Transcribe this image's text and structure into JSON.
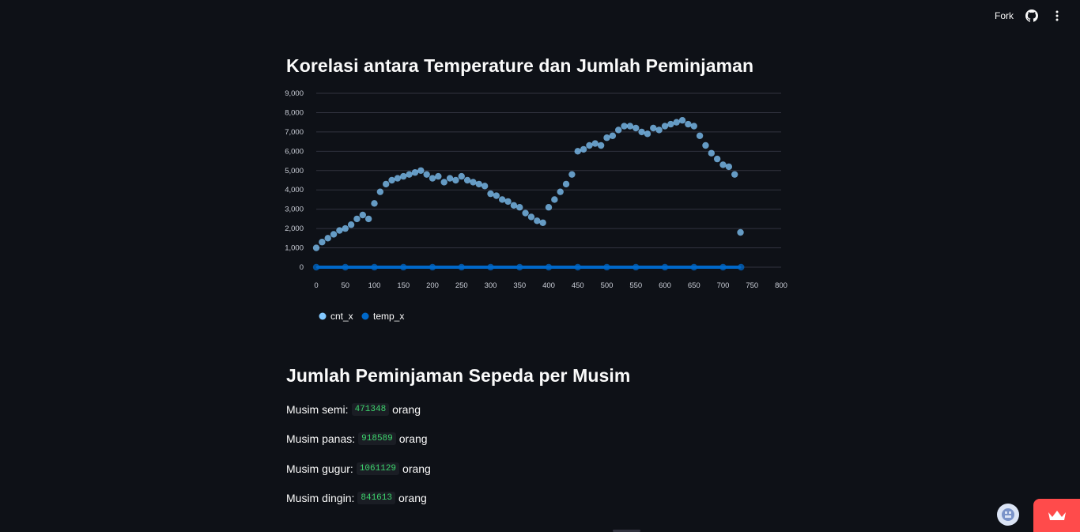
{
  "topbar": {
    "fork_label": "Fork",
    "icons": [
      "github-icon",
      "kebab-menu-icon"
    ]
  },
  "section1": {
    "title": "Korelasi antara Temperature dan Jumlah Peminjaman"
  },
  "section2": {
    "title": "Jumlah Peminjaman Sepeda per Musim",
    "rows": [
      {
        "label": "Musim semi:",
        "value": "471348",
        "unit": "orang"
      },
      {
        "label": "Musim panas:",
        "value": "918589",
        "unit": "orang"
      },
      {
        "label": "Musim gugur:",
        "value": "1061129",
        "unit": "orang"
      },
      {
        "label": "Musim dingin:",
        "value": "841613",
        "unit": "orang"
      }
    ]
  },
  "colors": {
    "background": "#0e1117",
    "cnt_color": "#83c9ff",
    "temp_color": "#0068c9",
    "code_text": "#3dd56d",
    "deploy_button": "#ff4b4b"
  },
  "chart_data": {
    "type": "scatter",
    "title": "",
    "xlabel": "",
    "ylabel": "",
    "xlim": [
      0,
      800
    ],
    "ylim": [
      0,
      9000
    ],
    "xticks": [
      "0",
      "50",
      "100",
      "150",
      "200",
      "250",
      "300",
      "350",
      "400",
      "450",
      "500",
      "550",
      "600",
      "650",
      "700",
      "750",
      "800"
    ],
    "yticks": [
      "0",
      "1,000",
      "2,000",
      "3,000",
      "4,000",
      "5,000",
      "6,000",
      "7,000",
      "8,000",
      "9,000"
    ],
    "grid": true,
    "legend_position": "bottom-left",
    "series": [
      {
        "name": "cnt_x",
        "color": "#83c9ff",
        "x": [
          0,
          10,
          20,
          30,
          40,
          50,
          60,
          70,
          80,
          90,
          100,
          110,
          120,
          130,
          140,
          150,
          160,
          170,
          180,
          190,
          200,
          210,
          220,
          230,
          240,
          250,
          260,
          270,
          280,
          290,
          300,
          310,
          320,
          330,
          340,
          350,
          360,
          370,
          380,
          390,
          400,
          410,
          420,
          430,
          440,
          450,
          460,
          470,
          480,
          490,
          500,
          510,
          520,
          530,
          540,
          550,
          560,
          570,
          580,
          590,
          600,
          610,
          620,
          630,
          640,
          650,
          660,
          670,
          680,
          690,
          700,
          710,
          720,
          730
        ],
        "y": [
          1000,
          1300,
          1500,
          1700,
          1900,
          2000,
          2200,
          2500,
          2700,
          2500,
          3300,
          3900,
          4300,
          4500,
          4600,
          4700,
          4800,
          4900,
          5000,
          4800,
          4600,
          4700,
          4400,
          4600,
          4500,
          4700,
          4500,
          4400,
          4300,
          4200,
          3800,
          3700,
          3500,
          3400,
          3200,
          3100,
          2800,
          2600,
          2400,
          2300,
          3100,
          3500,
          3900,
          4300,
          4800,
          6000,
          6100,
          6300,
          6400,
          6300,
          6700,
          6800,
          7100,
          7300,
          7300,
          7200,
          7000,
          6900,
          7200,
          7100,
          7300,
          7400,
          7500,
          7600,
          7400,
          7300,
          6800,
          6300,
          5900,
          5600,
          5300,
          5200,
          4800,
          1800
        ]
      },
      {
        "name": "temp_x",
        "color": "#0068c9",
        "x": [
          0,
          50,
          100,
          150,
          200,
          250,
          300,
          350,
          400,
          450,
          500,
          550,
          600,
          650,
          700,
          731
        ],
        "y": [
          0,
          0,
          1,
          1,
          1,
          1,
          1,
          0,
          0,
          0,
          1,
          1,
          1,
          0,
          0,
          0
        ]
      }
    ]
  }
}
